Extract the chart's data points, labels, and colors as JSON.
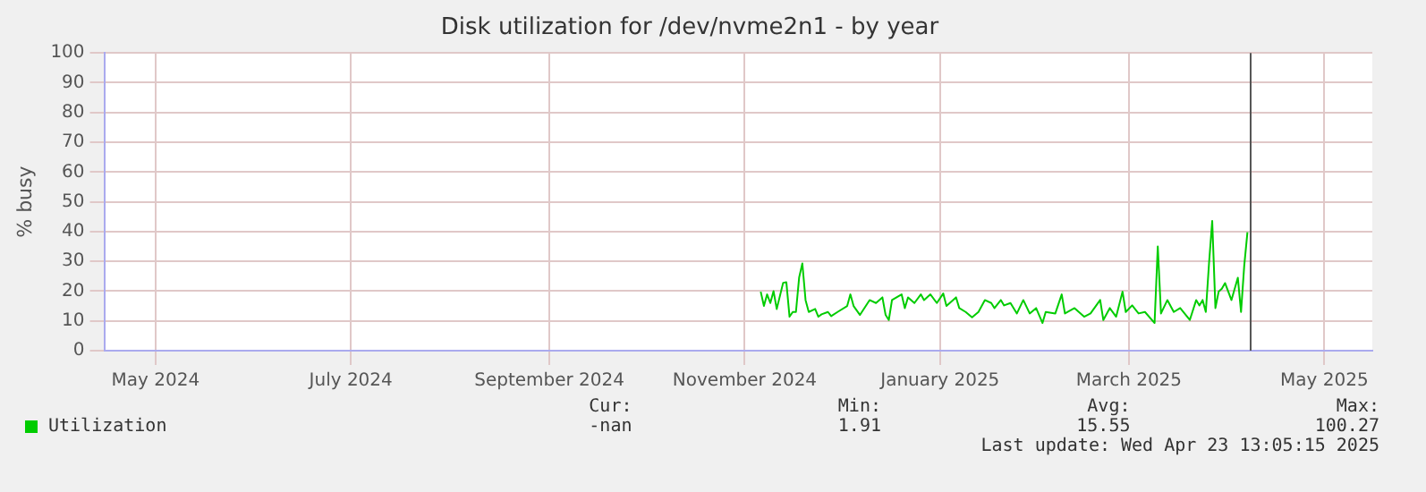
{
  "chart_data": {
    "type": "line",
    "title": "Disk utilization for /dev/nvme2n1 - by year",
    "ylabel": "% busy",
    "xlim": [
      "2024-04-30",
      "2025-05-31"
    ],
    "xticks": [
      {
        "value": "2024-05-16",
        "label": "May 2024"
      },
      {
        "value": "2024-07-16",
        "label": "July 2024"
      },
      {
        "value": "2024-09-16",
        "label": "September 2024"
      },
      {
        "value": "2024-11-16",
        "label": "November 2024"
      },
      {
        "value": "2025-01-16",
        "label": "January 2025"
      },
      {
        "value": "2025-03-16",
        "label": "March 2025"
      },
      {
        "value": "2025-05-16",
        "label": "May 2025"
      }
    ],
    "ylim": [
      0,
      100
    ],
    "yticks": [
      0,
      10,
      20,
      30,
      40,
      50,
      60,
      70,
      80,
      90,
      100
    ],
    "grid": true,
    "legend": "bottom left",
    "marker": "none",
    "line_style": "solid",
    "x": [
      "2024-11-21",
      "2024-11-22",
      "2024-11-23",
      "2024-11-24",
      "2024-11-25",
      "2024-11-26",
      "2024-11-28",
      "2024-11-29",
      "2024-11-30",
      "2024-12-01",
      "2024-12-02",
      "2024-12-03",
      "2024-12-04",
      "2024-12-05",
      "2024-12-06",
      "2024-12-08",
      "2024-12-09",
      "2024-12-10",
      "2024-12-12",
      "2024-12-13",
      "2024-12-15",
      "2024-12-18",
      "2024-12-19",
      "2024-12-20",
      "2024-12-22",
      "2024-12-25",
      "2024-12-27",
      "2024-12-29",
      "2024-12-30",
      "2024-12-31",
      "2025-01-01",
      "2025-01-04",
      "2025-01-05",
      "2025-01-06",
      "2025-01-08",
      "2025-01-10",
      "2025-01-11",
      "2025-01-13",
      "2025-01-15",
      "2025-01-17",
      "2025-01-18",
      "2025-01-21",
      "2025-01-22",
      "2025-01-24",
      "2025-01-26",
      "2025-01-28",
      "2025-01-30",
      "2025-02-01",
      "2025-02-02",
      "2025-02-04",
      "2025-02-05",
      "2025-02-07",
      "2025-02-09",
      "2025-02-11",
      "2025-02-13",
      "2025-02-15",
      "2025-02-17",
      "2025-02-18",
      "2025-02-21",
      "2025-02-23",
      "2025-02-24",
      "2025-02-27",
      "2025-03-02",
      "2025-03-04",
      "2025-03-07",
      "2025-03-08",
      "2025-03-10",
      "2025-03-12",
      "2025-03-14",
      "2025-03-15",
      "2025-03-17",
      "2025-03-19",
      "2025-03-21",
      "2025-03-24",
      "2025-03-25",
      "2025-03-26",
      "2025-03-28",
      "2025-03-30",
      "2025-04-01",
      "2025-04-04",
      "2025-04-06",
      "2025-04-07",
      "2025-04-08",
      "2025-04-09",
      "2025-04-10",
      "2025-04-11",
      "2025-04-12",
      "2025-04-13",
      "2025-04-14",
      "2025-04-15",
      "2025-04-17",
      "2025-04-19",
      "2025-04-20",
      "2025-04-21",
      "2025-04-22"
    ],
    "series": [
      {
        "name": "Utilization",
        "color": "#00cc00",
        "values": [
          19.8,
          15,
          18.9,
          16,
          20,
          14,
          22.8,
          23,
          11.4,
          13,
          13,
          24.6,
          29.3,
          17,
          13,
          14,
          11.4,
          12.2,
          13,
          11.6,
          13,
          15,
          18.9,
          15,
          12,
          17,
          16,
          17.9,
          12,
          10.3,
          17,
          18.9,
          14.3,
          17.9,
          16,
          18.9,
          17,
          18.9,
          16,
          19.2,
          15,
          17.9,
          14.3,
          13,
          11.2,
          13,
          17,
          16,
          14.3,
          17,
          15.2,
          16,
          12.5,
          17,
          12.5,
          14.3,
          9.3,
          13,
          12.5,
          18.9,
          12.5,
          14.3,
          11.4,
          12.5,
          17,
          10.3,
          14.3,
          11.4,
          19.8,
          13,
          15.2,
          12.5,
          13,
          9.3,
          35,
          12.5,
          17,
          13,
          14.3,
          10.3,
          17,
          15.2,
          17,
          13,
          29.3,
          43.6,
          14.3,
          19.8,
          20.8,
          22.7,
          17,
          24.5,
          13,
          28.6,
          39.8
        ]
      }
    ],
    "ref_lines": [
      {
        "axis": "x",
        "value": "2025-04-23",
        "color": "#555555"
      }
    ],
    "annotations": [
      "Cur:",
      "-nan",
      "Min:",
      "1.91",
      "Avg:",
      "15.55",
      "Max:",
      "100.27",
      "Last update: Wed Apr 23 13:05:15 2025"
    ]
  }
}
